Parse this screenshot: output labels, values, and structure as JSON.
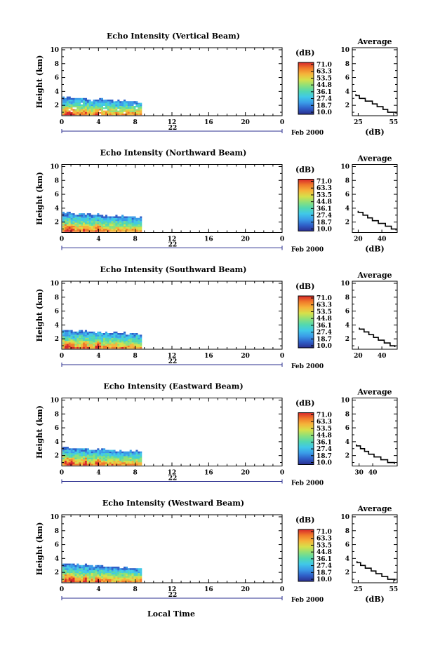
{
  "page": {
    "x_axis_title": "Local Time",
    "date_label": "Feb 2000",
    "day_label": "22"
  },
  "chart_data": [
    {
      "type": "heatmap",
      "title": "Echo Intensity (Vertical Beam)",
      "ylabel": "Height (km)",
      "xlabel": "Local Time",
      "x_ticks": [
        "0",
        "4",
        "8",
        "12",
        "16",
        "20",
        "0"
      ],
      "y_ticks": [
        "10",
        "8",
        "6",
        "4",
        "2"
      ],
      "xlim": [
        0,
        24
      ],
      "ylim": [
        0.5,
        10.3
      ],
      "data_time_range_hr": [
        0,
        8.6
      ],
      "echo_top_km_start": 3.3,
      "echo_top_km_end": 2.7,
      "colorbar": {
        "unit": "(dB)",
        "labels": [
          "71.0",
          "63.3",
          "53.5",
          "44.8",
          "36.1",
          "27.4",
          "18.7",
          "10.0"
        ]
      },
      "average_profile": {
        "title": "Average",
        "xlabel": "(dB)",
        "x_ticks": [
          "25",
          "55"
        ],
        "xlim": [
          20,
          58
        ],
        "y_ticks": [
          "10",
          "8",
          "6",
          "4",
          "2"
        ],
        "height_km": [
          0.8,
          1.2,
          1.6,
          2.0,
          2.4,
          2.8,
          3.2,
          3.6
        ],
        "db": [
          57,
          50,
          46,
          41,
          37,
          31,
          26,
          23
        ]
      }
    },
    {
      "type": "heatmap",
      "title": "Echo Intensity (Northward Beam)",
      "ylabel": "Height (km)",
      "xlabel": "Local Time",
      "x_ticks": [
        "0",
        "4",
        "8",
        "12",
        "16",
        "20",
        "0"
      ],
      "y_ticks": [
        "10",
        "8",
        "6",
        "4",
        "2"
      ],
      "xlim": [
        0,
        24
      ],
      "ylim": [
        0.5,
        10.3
      ],
      "data_time_range_hr": [
        0,
        8.6
      ],
      "echo_top_km_start": 3.5,
      "echo_top_km_end": 2.8,
      "colorbar": {
        "unit": "(dB)",
        "labels": [
          "71.0",
          "63.3",
          "53.5",
          "44.8",
          "36.1",
          "27.4",
          "18.7",
          "10.0"
        ]
      },
      "average_profile": {
        "title": "Average",
        "xlabel": "(dB)",
        "x_ticks": [
          "20",
          "40"
        ],
        "xlim": [
          15,
          53
        ],
        "y_ticks": [
          "10",
          "8",
          "6",
          "4",
          "2"
        ],
        "height_km": [
          0.8,
          1.2,
          1.6,
          2.0,
          2.4,
          2.8,
          3.2,
          3.6
        ],
        "db": [
          52,
          48,
          43,
          37,
          32,
          28,
          24,
          20
        ]
      }
    },
    {
      "type": "heatmap",
      "title": "Echo Intensity (Southward Beam)",
      "ylabel": "Height (km)",
      "xlabel": "Local Time",
      "x_ticks": [
        "0",
        "4",
        "8",
        "12",
        "16",
        "20",
        "0"
      ],
      "y_ticks": [
        "10",
        "8",
        "6",
        "4",
        "2"
      ],
      "xlim": [
        0,
        24
      ],
      "ylim": [
        0.5,
        10.3
      ],
      "data_time_range_hr": [
        0,
        8.6
      ],
      "echo_top_km_start": 3.4,
      "echo_top_km_end": 2.8,
      "colorbar": {
        "unit": "(dB)",
        "labels": [
          "71.0",
          "63.3",
          "53.5",
          "44.8",
          "36.1",
          "27.4",
          "18.7",
          "10.0"
        ]
      },
      "average_profile": {
        "title": "Average",
        "xlabel": "",
        "x_ticks": [
          "20",
          "40"
        ],
        "xlim": [
          15,
          53
        ],
        "y_ticks": [
          "10",
          "8",
          "6",
          "4",
          "2"
        ],
        "height_km": [
          0.8,
          1.2,
          1.6,
          2.0,
          2.4,
          2.8,
          3.2,
          3.6
        ],
        "db": [
          51,
          47,
          42,
          37,
          33,
          29,
          25,
          21
        ]
      }
    },
    {
      "type": "heatmap",
      "title": "Echo Intensity (Eastward Beam)",
      "ylabel": "Height (km)",
      "xlabel": "Local Time",
      "x_ticks": [
        "0",
        "4",
        "8",
        "12",
        "16",
        "20",
        "0"
      ],
      "y_ticks": [
        "10",
        "8",
        "6",
        "4",
        "2"
      ],
      "xlim": [
        0,
        24
      ],
      "ylim": [
        0.5,
        10.3
      ],
      "data_time_range_hr": [
        0,
        8.6
      ],
      "echo_top_km_start": 3.3,
      "echo_top_km_end": 2.7,
      "colorbar": {
        "unit": "(dB)",
        "labels": [
          "71.0",
          "63.3",
          "53.5",
          "44.8",
          "36.1",
          "27.4",
          "18.7",
          "10.0"
        ]
      },
      "average_profile": {
        "title": "Average",
        "xlabel": "",
        "x_ticks": [
          "30",
          "40"
        ],
        "xlim": [
          25,
          58
        ],
        "y_ticks": [
          "10",
          "8",
          "6",
          "4",
          "2"
        ],
        "height_km": [
          0.8,
          1.2,
          1.6,
          2.0,
          2.4,
          2.8,
          3.2,
          3.6
        ],
        "db": [
          56,
          51,
          46,
          41,
          37,
          34,
          31,
          28
        ]
      }
    },
    {
      "type": "heatmap",
      "title": "Echo Intensity (Westward Beam)",
      "ylabel": "Height (km)",
      "xlabel": "Local Time",
      "x_ticks": [
        "0",
        "4",
        "8",
        "12",
        "16",
        "20",
        "0"
      ],
      "y_ticks": [
        "10",
        "8",
        "6",
        "4",
        "2"
      ],
      "xlim": [
        0,
        24
      ],
      "ylim": [
        0.5,
        10.3
      ],
      "data_time_range_hr": [
        0,
        8.6
      ],
      "echo_top_km_start": 3.4,
      "echo_top_km_end": 2.7,
      "colorbar": {
        "unit": "(dB)",
        "labels": [
          "71.0",
          "63.3",
          "53.5",
          "44.8",
          "36.1",
          "27.4",
          "18.7",
          "10.0"
        ]
      },
      "average_profile": {
        "title": "Average",
        "xlabel": "(dB)",
        "x_ticks": [
          "25",
          "55"
        ],
        "xlim": [
          20,
          58
        ],
        "y_ticks": [
          "10",
          "8",
          "6",
          "4",
          "2"
        ],
        "height_km": [
          0.8,
          1.2,
          1.6,
          2.0,
          2.4,
          2.8,
          3.2,
          3.6
        ],
        "db": [
          56,
          50,
          45,
          40,
          36,
          31,
          27,
          24
        ]
      }
    }
  ],
  "colors": {
    "colormap": [
      "#2b2f8f",
      "#2f5fc8",
      "#3a9be8",
      "#40c8e8",
      "#52d8b0",
      "#8de07a",
      "#d6e04a",
      "#f5b43a",
      "#f07a2a",
      "#d8282a"
    ],
    "axis": "#000000",
    "day_marker": "#2b2f8f"
  }
}
